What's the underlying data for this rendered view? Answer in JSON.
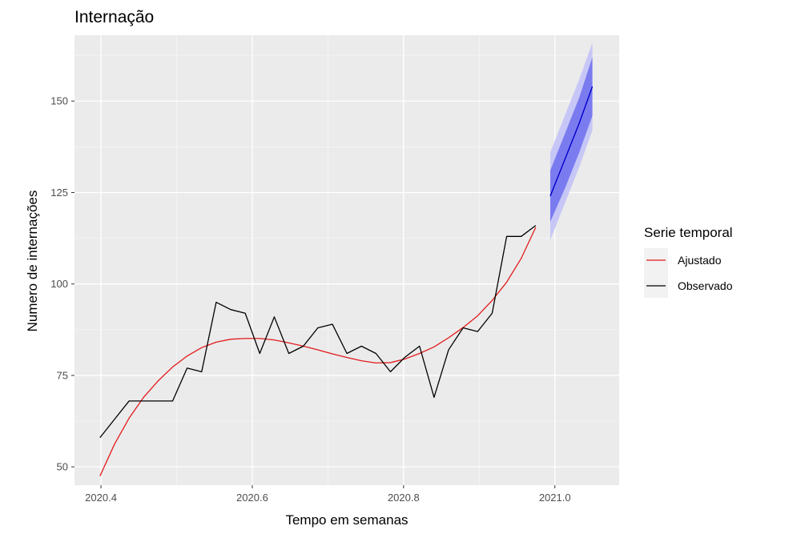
{
  "chart_data": {
    "type": "line",
    "title": "Internação",
    "xlabel": "Tempo em semanas",
    "ylabel": "Numero de internações",
    "xlim": [
      2020.365,
      2021.085
    ],
    "ylim": [
      45,
      168
    ],
    "x_ticks": [
      2020.4,
      2020.6,
      2020.8,
      2021.0
    ],
    "x_tick_labels": [
      "2020.4",
      "2020.6",
      "2020.8",
      "2021.0"
    ],
    "y_ticks": [
      50,
      75,
      100,
      125,
      150
    ],
    "y_tick_labels": [
      "50",
      "75",
      "100",
      "125",
      "150"
    ],
    "grid": true,
    "legend": {
      "title": "Serie temporal",
      "position": "right"
    },
    "series": [
      {
        "name": "Ajustado",
        "color": "#e31a1c",
        "x": [
          2020.3987,
          2020.4179,
          2020.4371,
          2020.4563,
          2020.4755,
          2020.4947,
          2020.5139,
          2020.5331,
          2020.5523,
          2020.5715,
          2020.5907,
          2020.6099,
          2020.6291,
          2020.6483,
          2020.6675,
          2020.6867,
          2020.7059,
          2020.7251,
          2020.7443,
          2020.7635,
          2020.7827,
          2020.8019,
          2020.8211,
          2020.8403,
          2020.8595,
          2020.8787,
          2020.8979,
          2020.9171,
          2020.9363,
          2020.9555,
          2020.9747
        ],
        "y": [
          47.5,
          56.2,
          63.3,
          69.0,
          73.5,
          77.3,
          80.3,
          82.6,
          84.1,
          84.9,
          85.1,
          85.1,
          84.7,
          83.9,
          83.0,
          82.0,
          80.9,
          79.9,
          79.0,
          78.4,
          78.5,
          79.5,
          81.0,
          82.8,
          85.3,
          88.1,
          91.3,
          95.5,
          100.5,
          107.0,
          115.5
        ]
      },
      {
        "name": "Observado",
        "color": "#000000",
        "x": [
          2020.3987,
          2020.4179,
          2020.4371,
          2020.4563,
          2020.4755,
          2020.4947,
          2020.5139,
          2020.5331,
          2020.5523,
          2020.5715,
          2020.5907,
          2020.6099,
          2020.6291,
          2020.6483,
          2020.6675,
          2020.6867,
          2020.7059,
          2020.7251,
          2020.7443,
          2020.7635,
          2020.7827,
          2020.8019,
          2020.8211,
          2020.8403,
          2020.8595,
          2020.8787,
          2020.8979,
          2020.9171,
          2020.9363,
          2020.9555,
          2020.9747
        ],
        "y": [
          58,
          63,
          68,
          68,
          68,
          68,
          77,
          76,
          95,
          93,
          92,
          81,
          91,
          81,
          83,
          88,
          89,
          81,
          83,
          81,
          76,
          80,
          83,
          69,
          82,
          88,
          87,
          92,
          113,
          113,
          116
        ]
      }
    ],
    "forecast": {
      "color": "#0000cc",
      "inner_band_color": "#7b7bf0",
      "outer_band_color": "#c7c7f7",
      "x": [
        2020.9939,
        2021.0131,
        2021.0323,
        2021.0496
      ],
      "mean": [
        124,
        134,
        144,
        154
      ],
      "lower_80": [
        117,
        126,
        136,
        146
      ],
      "upper_80": [
        131,
        141,
        151,
        162
      ],
      "lower_95": [
        112,
        122,
        132,
        142
      ],
      "upper_95": [
        136,
        146,
        156,
        166
      ]
    }
  }
}
